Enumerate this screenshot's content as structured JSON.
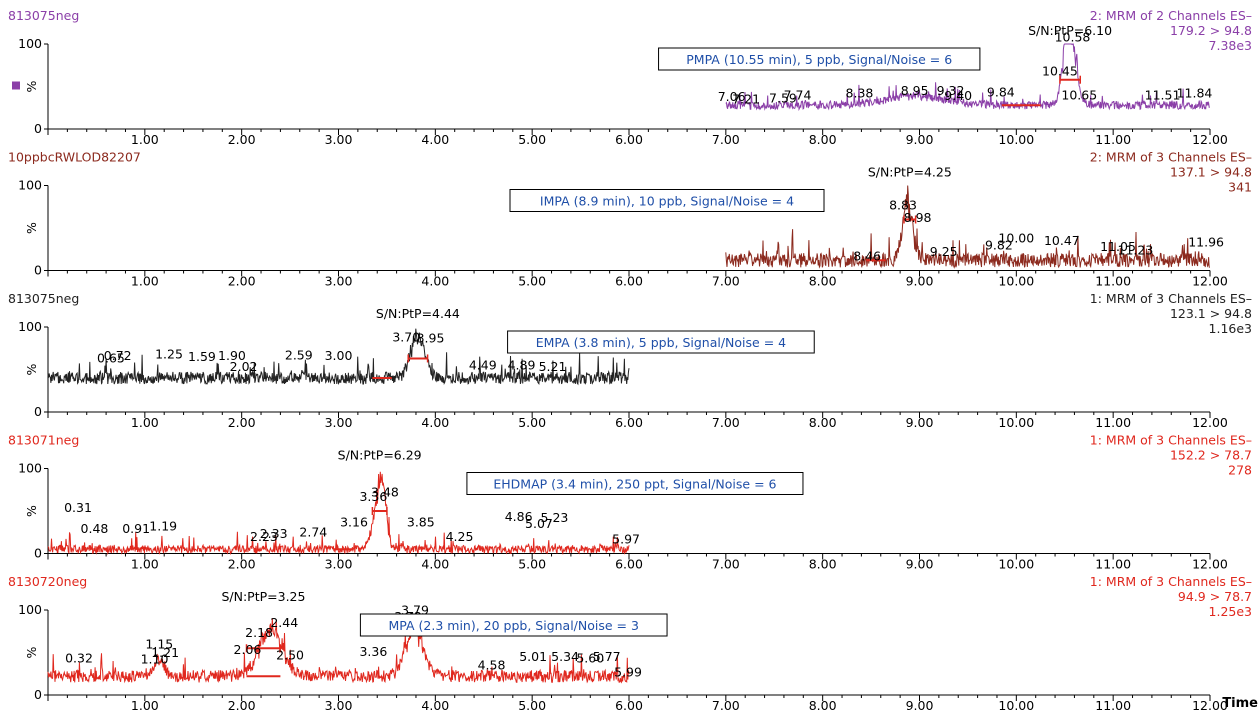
{
  "x_axis": {
    "label": "Time",
    "ticks": [
      "1.00",
      "2.00",
      "3.00",
      "4.00",
      "5.00",
      "6.00",
      "7.00",
      "8.00",
      "9.00",
      "10.00",
      "11.00",
      "12.00"
    ]
  },
  "chart_data": [
    {
      "type": "line",
      "sample": "813075neg",
      "header": [
        "2: MRM of 2 Channels ES–",
        "179.2 > 94.8",
        "7.38e3"
      ],
      "color": "#8b3fa8",
      "xlim": [
        0,
        12
      ],
      "ylim": [
        0,
        100
      ],
      "ylabel": "%",
      "yticks": [
        "0",
        "100"
      ],
      "legend_marker": true,
      "callout": "PMPA (10.55 min), 5 ppb, Signal/Noise = 6",
      "sn_label": "S/N:PtP=6.10",
      "trace": {
        "start": 7.0,
        "end": 12.0,
        "baseline": 28,
        "noise": 8,
        "peaks": [
          {
            "x": 10.55,
            "h": 100,
            "w": 0.06
          },
          {
            "x": 8.95,
            "h": 12,
            "w": 0.3
          }
        ]
      },
      "noise_bar": [
        9.85,
        10.25
      ],
      "signal_bar": [
        10.45,
        10.66
      ],
      "signal_bar_y": 58,
      "peak_labels": [
        {
          "x": 7.06,
          "y": 33,
          "t": "7.06"
        },
        {
          "x": 7.21,
          "y": 30,
          "t": "7.21"
        },
        {
          "x": 7.59,
          "y": 31,
          "t": "7.59"
        },
        {
          "x": 7.74,
          "y": 35,
          "t": "7.74"
        },
        {
          "x": 8.38,
          "y": 37,
          "t": "8.38"
        },
        {
          "x": 8.95,
          "y": 40,
          "t": "8.95"
        },
        {
          "x": 9.32,
          "y": 40,
          "t": "9.32"
        },
        {
          "x": 9.4,
          "y": 34,
          "t": "9.40"
        },
        {
          "x": 9.84,
          "y": 38,
          "t": "9.84"
        },
        {
          "x": 10.45,
          "y": 63,
          "t": "10.45"
        },
        {
          "x": 10.58,
          "y": 103,
          "t": "10.58"
        },
        {
          "x": 10.65,
          "y": 35,
          "t": "10.65"
        },
        {
          "x": 11.51,
          "y": 35,
          "t": "11.51"
        },
        {
          "x": 11.84,
          "y": 37,
          "t": "11.84"
        }
      ]
    },
    {
      "type": "line",
      "sample": "10ppbcRWLOD82207",
      "header": [
        "2: MRM of 3 Channels ES–",
        "137.1 > 94.8",
        "341"
      ],
      "color": "#8c2a1e",
      "xlim": [
        0,
        12
      ],
      "ylim": [
        0,
        100
      ],
      "ylabel": "%",
      "yticks": [
        "0",
        "100"
      ],
      "legend_marker": false,
      "callout": "IMPA (8.9 min), 10 ppb, Signal/Noise = 4",
      "sn_label": "S/N:PtP=4.25",
      "trace": {
        "start": 7.0,
        "end": 12.0,
        "baseline": 12,
        "noise": 14,
        "peaks": [
          {
            "x": 8.88,
            "h": 70,
            "w": 0.05
          }
        ]
      },
      "noise_bar": [
        8.45,
        8.65
      ],
      "signal_bar": [
        8.84,
        8.96
      ],
      "signal_bar_y": 60,
      "peak_labels": [
        {
          "x": 8.83,
          "y": 72,
          "t": "8.83"
        },
        {
          "x": 8.98,
          "y": 57,
          "t": "8.98"
        },
        {
          "x": 8.46,
          "y": 12,
          "t": "8.46"
        },
        {
          "x": 9.25,
          "y": 17,
          "t": "9.25"
        },
        {
          "x": 9.82,
          "y": 25,
          "t": "9.82"
        },
        {
          "x": 10.0,
          "y": 33,
          "t": "10.00"
        },
        {
          "x": 10.47,
          "y": 30,
          "t": "10.47"
        },
        {
          "x": 11.05,
          "y": 23,
          "t": "11.05"
        },
        {
          "x": 11.23,
          "y": 19,
          "t": "11.23"
        },
        {
          "x": 11.96,
          "y": 28,
          "t": "11.96"
        }
      ]
    },
    {
      "type": "line",
      "sample": "813075neg",
      "header": [
        "1: MRM of 3 Channels ES–",
        "123.1 > 94.8",
        "1.16e3"
      ],
      "color": "#222222",
      "xlim": [
        0,
        12
      ],
      "ylim": [
        0,
        100
      ],
      "ylabel": "%",
      "yticks": [
        "0",
        "100"
      ],
      "legend_marker": false,
      "callout": "EMPA (3.8 min), 5 ppb, Signal/Noise = 4",
      "sn_label": "S/N:PtP=4.44",
      "trace": {
        "start": 0.0,
        "end": 6.0,
        "baseline": 40,
        "noise": 12,
        "peaks": [
          {
            "x": 3.82,
            "h": 55,
            "w": 0.07
          }
        ]
      },
      "noise_bar": [
        3.35,
        3.55
      ],
      "signal_bar": [
        3.72,
        3.92
      ],
      "signal_bar_y": 63,
      "peak_labels": [
        {
          "x": 0.65,
          "y": 58,
          "t": "0.65"
        },
        {
          "x": 0.72,
          "y": 61,
          "t": "0.72"
        },
        {
          "x": 1.25,
          "y": 63,
          "t": "1.25"
        },
        {
          "x": 1.59,
          "y": 60,
          "t": "1.59"
        },
        {
          "x": 1.9,
          "y": 61,
          "t": "1.90"
        },
        {
          "x": 2.02,
          "y": 48,
          "t": "2.02"
        },
        {
          "x": 2.59,
          "y": 62,
          "t": "2.59"
        },
        {
          "x": 3.0,
          "y": 61,
          "t": "3.00"
        },
        {
          "x": 3.7,
          "y": 83,
          "t": "3.70"
        },
        {
          "x": 3.95,
          "y": 82,
          "t": "3.95"
        },
        {
          "x": 4.49,
          "y": 50,
          "t": "4.49"
        },
        {
          "x": 4.89,
          "y": 50,
          "t": "4.89"
        },
        {
          "x": 5.21,
          "y": 48,
          "t": "5.21"
        }
      ]
    },
    {
      "type": "line",
      "sample": "813071neg",
      "header": [
        "1: MRM of 3 Channels ES–",
        "152.2 > 78.7",
        "278"
      ],
      "color": "#e0281e",
      "xlim": [
        0,
        12
      ],
      "ylim": [
        0,
        100
      ],
      "ylabel": "%",
      "yticks": [
        "0",
        "100"
      ],
      "legend_marker": false,
      "callout": "EHDMAP (3.4 min), 250 ppt, Signal/Noise = 6",
      "sn_label": "S/N:PtP=6.29",
      "trace": {
        "start": 0.0,
        "end": 6.0,
        "baseline": 5,
        "noise": 8,
        "peaks": [
          {
            "x": 3.42,
            "h": 62,
            "w": 0.06
          },
          {
            "x": 3.46,
            "h": 30,
            "w": 0.03
          }
        ]
      },
      "noise_bar": [
        2.95,
        3.15
      ],
      "signal_bar": [
        3.35,
        3.5
      ],
      "signal_bar_y": 50,
      "peak_labels": [
        {
          "x": 0.31,
          "y": 49,
          "t": "0.31"
        },
        {
          "x": 0.48,
          "y": 24,
          "t": "0.48"
        },
        {
          "x": 0.91,
          "y": 24,
          "t": "0.91"
        },
        {
          "x": 1.19,
          "y": 27,
          "t": "1.19"
        },
        {
          "x": 2.23,
          "y": 15,
          "t": "2.23"
        },
        {
          "x": 2.33,
          "y": 18,
          "t": "2.33"
        },
        {
          "x": 2.74,
          "y": 20,
          "t": "2.74"
        },
        {
          "x": 3.16,
          "y": 32,
          "t": "3.16"
        },
        {
          "x": 3.36,
          "y": 62,
          "t": "3.36"
        },
        {
          "x": 3.48,
          "y": 67,
          "t": "3.48"
        },
        {
          "x": 3.85,
          "y": 32,
          "t": "3.85"
        },
        {
          "x": 4.25,
          "y": 15,
          "t": "4.25"
        },
        {
          "x": 4.86,
          "y": 38,
          "t": "4.86"
        },
        {
          "x": 5.07,
          "y": 30,
          "t": "5.07"
        },
        {
          "x": 5.23,
          "y": 37,
          "t": "5.23"
        },
        {
          "x": 5.97,
          "y": 12,
          "t": "5.97"
        }
      ]
    },
    {
      "type": "line",
      "sample": "8130720neg",
      "header": [
        "1: MRM of 3 Channels ES–",
        "94.9 > 78.7",
        "1.25e3"
      ],
      "color": "#e0281e",
      "xlim": [
        0,
        12
      ],
      "ylim": [
        0,
        100
      ],
      "ylabel": "%",
      "yticks": [
        "0",
        "100"
      ],
      "legend_marker": false,
      "callout": "MPA (2.3 min), 20 ppb, Signal/Noise = 3",
      "sn_label": "S/N:PtP=3.25",
      "trace": {
        "start": 0.0,
        "end": 6.0,
        "baseline": 22,
        "noise": 12,
        "peaks": [
          {
            "x": 2.3,
            "h": 55,
            "w": 0.12
          },
          {
            "x": 3.78,
            "h": 55,
            "w": 0.09
          },
          {
            "x": 1.15,
            "h": 20,
            "w": 0.05
          }
        ]
      },
      "noise_bar": [
        2.05,
        2.4
      ],
      "signal_bar": [
        2.05,
        2.4
      ],
      "signal_bar_y": 55,
      "peak_labels": [
        {
          "x": 0.32,
          "y": 38,
          "t": "0.32"
        },
        {
          "x": 1.1,
          "y": 37,
          "t": "1.10"
        },
        {
          "x": 1.15,
          "y": 55,
          "t": "1.15"
        },
        {
          "x": 1.21,
          "y": 45,
          "t": "1.21"
        },
        {
          "x": 2.06,
          "y": 48,
          "t": "2.06"
        },
        {
          "x": 2.18,
          "y": 68,
          "t": "2.18"
        },
        {
          "x": 2.44,
          "y": 80,
          "t": "2.44"
        },
        {
          "x": 2.5,
          "y": 42,
          "t": "2.50"
        },
        {
          "x": 3.36,
          "y": 46,
          "t": "3.36"
        },
        {
          "x": 3.72,
          "y": 87,
          "t": "3.72"
        },
        {
          "x": 3.79,
          "y": 95,
          "t": "3.79"
        },
        {
          "x": 3.88,
          "y": 85,
          "t": "3.88"
        },
        {
          "x": 4.58,
          "y": 30,
          "t": "4.58"
        },
        {
          "x": 5.01,
          "y": 40,
          "t": "5.01"
        },
        {
          "x": 5.34,
          "y": 40,
          "t": "5.34"
        },
        {
          "x": 5.6,
          "y": 38,
          "t": "5.60"
        },
        {
          "x": 5.77,
          "y": 40,
          "t": "5.77"
        },
        {
          "x": 5.99,
          "y": 22,
          "t": "5.99"
        }
      ]
    }
  ]
}
